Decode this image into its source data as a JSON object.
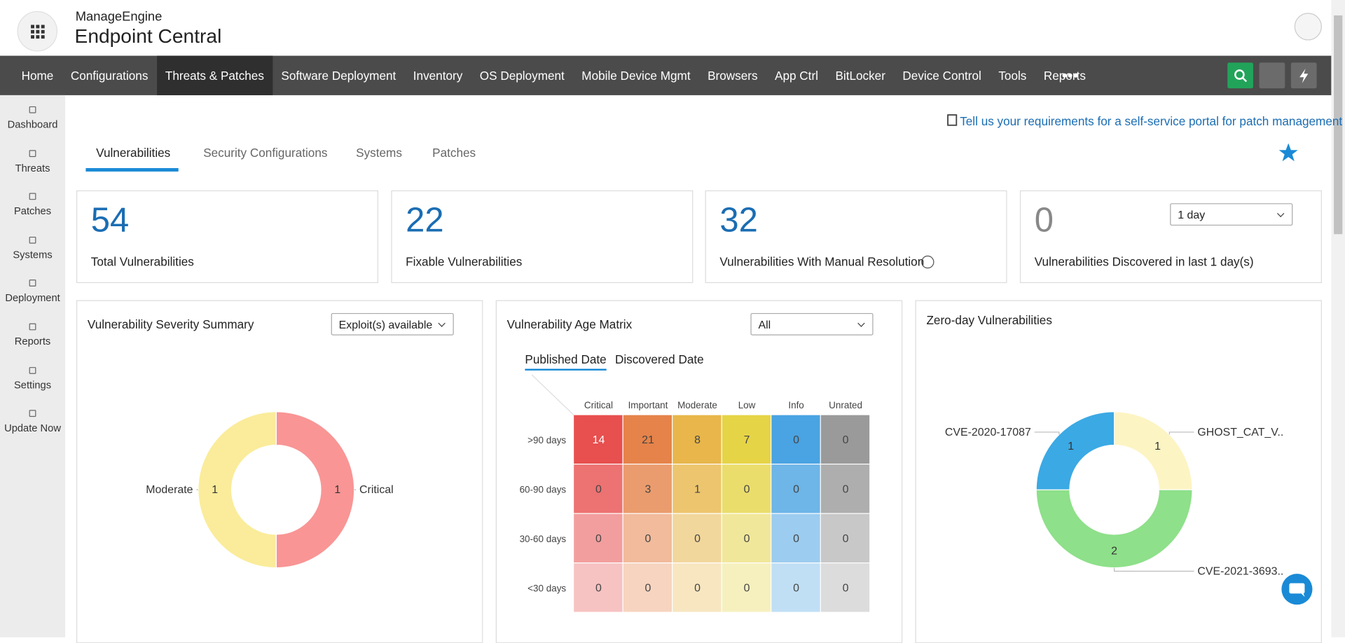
{
  "header": {
    "brand": "ManageEngine",
    "product": "Endpoint Central"
  },
  "nav": [
    "Home",
    "Configurations",
    "Threats & Patches",
    "Software Deployment",
    "Inventory",
    "OS Deployment",
    "Mobile Device Mgmt",
    "Browsers",
    "App Ctrl",
    "BitLocker",
    "Device Control",
    "Tools",
    "Reports"
  ],
  "sidebar": [
    "Dashboard",
    "Threats",
    "Patches",
    "Systems",
    "Deployment",
    "Reports",
    "Settings",
    "Update Now"
  ],
  "feedback_link": "Tell us your requirements for a self-service portal for patch management",
  "tabs": [
    "Vulnerabilities",
    "Security Configurations",
    "Systems",
    "Patches"
  ],
  "stats": [
    {
      "value": 54,
      "label": "Total Vulnerabilities"
    },
    {
      "value": 22,
      "label": "Fixable Vulnerabilities"
    },
    {
      "value": 32,
      "label": "Vulnerabilities With Manual Resolution"
    },
    {
      "value": 0,
      "label": "Vulnerabilities Discovered in last 1 day(s)",
      "select": "1 day"
    }
  ],
  "severity_summary": {
    "title": "Vulnerability Severity Summary",
    "filter": "Exploit(s) available",
    "chart": {
      "type": "pie",
      "categories": [
        "Critical",
        "Moderate"
      ],
      "values": [
        1,
        1
      ],
      "colors": [
        "#f99595",
        "#faec9a"
      ]
    }
  },
  "age_matrix": {
    "title": "Vulnerability Age Matrix",
    "filter": "All",
    "tabs": [
      "Published Date",
      "Discovered Date"
    ],
    "columns": [
      "Critical",
      "Important",
      "Moderate",
      "Low",
      "Info",
      "Unrated"
    ],
    "rows": [
      ">90 days",
      "60-90 days",
      "30-60 days",
      "<30 days"
    ],
    "colors": [
      "#e84f4f",
      "#e5834a",
      "#e8b64a",
      "#e6d447",
      "#4aa3e2",
      "#9a9a9a"
    ],
    "values": [
      [
        14,
        21,
        8,
        7,
        0,
        0
      ],
      [
        0,
        3,
        1,
        0,
        0,
        0
      ],
      [
        0,
        0,
        0,
        0,
        0,
        0
      ],
      [
        0,
        0,
        0,
        0,
        0,
        0
      ]
    ]
  },
  "zero_day": {
    "title": "Zero-day Vulnerabilities",
    "chart": {
      "type": "pie",
      "categories": [
        "GHOST_CAT_V..",
        "CVE-2021-3693..",
        "CVE-2020-17087"
      ],
      "values": [
        1,
        2,
        1
      ],
      "colors": [
        "#fdf4c4",
        "#8ee08a",
        "#3ba9e4"
      ]
    }
  }
}
